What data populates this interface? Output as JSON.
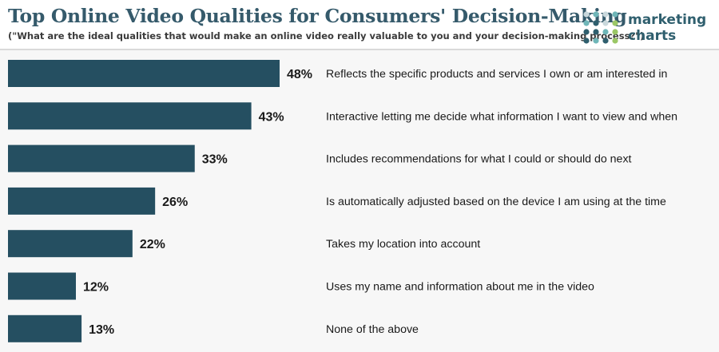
{
  "title": "Top Online Video Qualities for Consumers' Decision-Making",
  "subtitle": "(\"What are the ideal qualities that would make an online video really valuable to you and your decision-making process?\")",
  "logo": {
    "line1": "marketing",
    "line2": "charts"
  },
  "colors": {
    "bar": "#254f61",
    "title": "#355a6b",
    "text": "#1a1a1a"
  },
  "chart_data": {
    "type": "bar",
    "orientation": "horizontal",
    "title": "Top Online Video Qualities for Consumers' Decision-Making",
    "subtitle": "(\"What are the ideal qualities that would make an online video really valuable to you and your decision-making process?\")",
    "xlabel": "",
    "ylabel": "",
    "unit": "%",
    "xlim": [
      0,
      48
    ],
    "grid": false,
    "categories": [
      "Reflects the specific products and services I own or am interested in",
      "Interactive letting me decide what information I want to view and when",
      "Includes recommendations for what I could or should do next",
      "Is automatically adjusted based on the device I am using at the time",
      "Takes my location into account",
      "Uses my name and information about me in the video",
      "None of the above"
    ],
    "values": [
      48,
      43,
      33,
      26,
      22,
      12,
      13
    ],
    "data_labels": [
      "48%",
      "43%",
      "33%",
      "26%",
      "22%",
      "12%",
      "13%"
    ]
  }
}
